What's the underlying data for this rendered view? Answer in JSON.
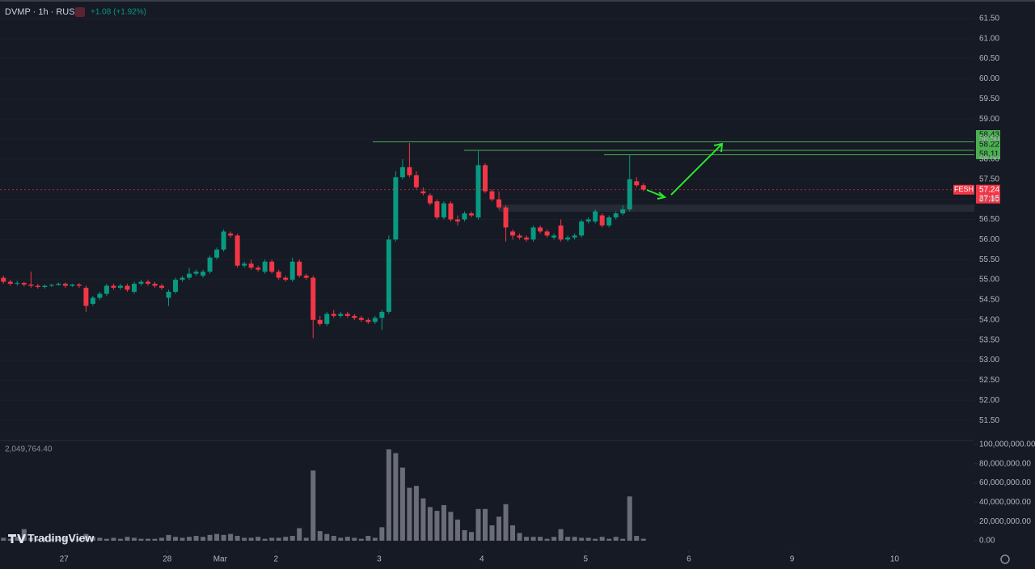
{
  "header": {
    "symbol": "DVMP · 1h · RUS",
    "change": "+1.08 (+1.92%)",
    "volume_readout": "2,049,764.40",
    "brand": "TradingView"
  },
  "chart_data": {
    "type": "candlestick",
    "up_color": "#089981",
    "down_color": "#f23645",
    "volume_color": "#6a6d78",
    "level_color": "#4caf50",
    "xlim": [
      -0.5,
      140.5
    ],
    "xticks": [
      {
        "value": 8.8,
        "label": "27"
      },
      {
        "value": 23.8,
        "label": "28"
      },
      {
        "value": 31.5,
        "label": "Mar"
      },
      {
        "value": 39.6,
        "label": "2"
      },
      {
        "value": 54.6,
        "label": "3"
      },
      {
        "value": 69.5,
        "label": "4"
      },
      {
        "value": 84.6,
        "label": "5"
      },
      {
        "value": 99.6,
        "label": "6"
      },
      {
        "value": 114.6,
        "label": "9"
      },
      {
        "value": 129.5,
        "label": "10"
      }
    ],
    "ylim": [
      51.0,
      62.0
    ],
    "yticks": [
      {
        "value": 51.5,
        "label": "51.50"
      },
      {
        "value": 52,
        "label": "52.00"
      },
      {
        "value": 52.5,
        "label": "52.50"
      },
      {
        "value": 53,
        "label": "53.00"
      },
      {
        "value": 53.5,
        "label": "53.50"
      },
      {
        "value": 54,
        "label": "54.00"
      },
      {
        "value": 54.5,
        "label": "54.50"
      },
      {
        "value": 55,
        "label": "55.00"
      },
      {
        "value": 55.5,
        "label": "55.50"
      },
      {
        "value": 56,
        "label": "56.00"
      },
      {
        "value": 56.5,
        "label": "56.50"
      },
      {
        "value": 57,
        "label": "57.00"
      },
      {
        "value": 57.5,
        "label": "57.50"
      },
      {
        "value": 58,
        "label": "58.00"
      },
      {
        "value": 58.5,
        "label": "58.50"
      },
      {
        "value": 59,
        "label": "59.00"
      },
      {
        "value": 59.5,
        "label": "59.50"
      },
      {
        "value": 60,
        "label": "60.00"
      },
      {
        "value": 60.5,
        "label": "60.50"
      },
      {
        "value": 61,
        "label": "61.00"
      },
      {
        "value": 61.5,
        "label": "61.50"
      }
    ],
    "volume_lim": [
      0,
      100000000
    ],
    "volume_ticks": [
      {
        "value": 0,
        "label": "0.00"
      },
      {
        "value": 20000000,
        "label": "20,000,000.00"
      },
      {
        "value": 40000000,
        "label": "40,000,000.00"
      },
      {
        "value": 60000000,
        "label": "60,000,000.00"
      },
      {
        "value": 80000000,
        "label": "80,000,000.00"
      },
      {
        "value": 100000000,
        "label": "100,000,000.00"
      }
    ],
    "open": [
      55.05,
      54.95,
      54.9,
      54.92,
      54.88,
      54.85,
      54.82,
      54.85,
      54.87,
      54.9,
      54.85,
      54.88,
      54.8,
      54.4,
      54.55,
      54.65,
      54.85,
      54.8,
      54.85,
      54.7,
      54.9,
      54.95,
      54.9,
      54.85,
      54.55,
      54.7,
      55.0,
      55.05,
      55.15,
      55.1,
      55.2,
      55.55,
      55.75,
      56.15,
      56.1,
      55.35,
      55.4,
      55.3,
      55.2,
      55.45,
      55.2,
      55.05,
      55.0,
      55.45,
      55.1,
      55.05,
      54.0,
      53.9,
      54.15,
      54.1,
      54.15,
      54.1,
      54.05,
      54.0,
      53.95,
      54.05,
      54.2,
      56.0,
      57.55,
      57.8,
      57.6,
      57.2,
      57.1,
      56.95,
      56.55,
      56.9,
      56.5,
      56.5,
      56.65,
      56.55,
      57.85,
      57.2,
      57.0,
      56.8,
      56.2,
      56.1,
      56.05,
      56.0,
      56.3,
      56.2,
      56.05,
      56.35,
      56.0,
      56.05,
      56.1,
      56.45,
      56.45,
      56.6,
      56.35,
      56.55,
      56.65,
      56.75,
      57.45,
      57.35
    ],
    "high": [
      55.1,
      55.0,
      54.97,
      54.95,
      55.2,
      54.9,
      54.88,
      54.9,
      54.93,
      54.93,
      54.9,
      54.92,
      54.85,
      54.6,
      54.7,
      54.9,
      54.9,
      54.9,
      54.9,
      54.95,
      55.0,
      55.0,
      54.95,
      54.9,
      54.75,
      55.05,
      55.1,
      55.3,
      55.25,
      55.25,
      55.6,
      55.8,
      56.25,
      56.2,
      56.15,
      55.45,
      55.5,
      55.35,
      55.5,
      55.5,
      55.25,
      55.1,
      55.55,
      55.5,
      55.15,
      55.1,
      54.1,
      54.2,
      54.25,
      54.2,
      54.2,
      54.15,
      54.1,
      54.05,
      54.1,
      54.25,
      56.1,
      57.7,
      58.0,
      58.4,
      57.7,
      57.3,
      57.15,
      57.0,
      56.95,
      56.95,
      56.6,
      56.7,
      56.7,
      58.2,
      57.9,
      57.25,
      57.2,
      56.85,
      56.25,
      56.15,
      56.1,
      56.35,
      56.35,
      56.25,
      56.15,
      56.5,
      56.1,
      56.15,
      56.5,
      56.55,
      56.75,
      56.65,
      56.6,
      56.7,
      56.85,
      58.1,
      57.55,
      57.4
    ],
    "low": [
      54.9,
      54.85,
      54.85,
      54.83,
      54.8,
      54.78,
      54.78,
      54.82,
      54.85,
      54.8,
      54.82,
      54.8,
      54.2,
      54.35,
      54.5,
      54.6,
      54.75,
      54.75,
      54.7,
      54.65,
      54.85,
      54.85,
      54.8,
      54.75,
      54.35,
      54.65,
      54.95,
      55.0,
      55.1,
      55.05,
      55.15,
      55.5,
      55.7,
      56.05,
      55.3,
      55.3,
      55.25,
      55.2,
      55.15,
      55.15,
      55.0,
      54.95,
      54.95,
      55.05,
      55.0,
      53.55,
      53.85,
      53.85,
      54.05,
      54.05,
      54.05,
      54.0,
      53.95,
      53.9,
      53.9,
      53.75,
      54.15,
      55.95,
      57.5,
      57.55,
      57.25,
      57.1,
      56.85,
      56.5,
      56.5,
      56.45,
      56.35,
      56.45,
      56.55,
      56.5,
      57.15,
      56.95,
      56.75,
      55.95,
      56.0,
      56.0,
      55.95,
      55.95,
      56.15,
      56.05,
      56.0,
      55.95,
      55.95,
      56.0,
      56.05,
      56.4,
      56.4,
      56.3,
      56.3,
      56.5,
      56.6,
      56.7,
      57.3,
      57.2
    ],
    "close": [
      54.95,
      54.9,
      54.92,
      54.88,
      54.85,
      54.82,
      54.85,
      54.87,
      54.9,
      54.85,
      54.88,
      54.85,
      54.35,
      54.55,
      54.65,
      54.85,
      54.8,
      54.85,
      54.75,
      54.9,
      54.95,
      54.9,
      54.85,
      54.8,
      54.7,
      55.0,
      55.05,
      55.15,
      55.2,
      55.2,
      55.55,
      55.75,
      56.2,
      56.1,
      55.35,
      55.4,
      55.3,
      55.25,
      55.45,
      55.2,
      55.05,
      55.0,
      55.45,
      55.1,
      55.05,
      54.0,
      53.9,
      54.15,
      54.1,
      54.15,
      54.1,
      54.05,
      54.0,
      53.95,
      54.05,
      54.2,
      56.0,
      57.55,
      57.8,
      57.6,
      57.3,
      57.15,
      56.9,
      56.55,
      56.9,
      56.5,
      56.45,
      56.65,
      56.6,
      57.85,
      57.2,
      57.0,
      56.8,
      56.3,
      56.1,
      56.05,
      56.0,
      56.3,
      56.2,
      56.1,
      56.1,
      56.0,
      56.05,
      56.1,
      56.45,
      56.5,
      56.7,
      56.35,
      56.55,
      56.65,
      56.75,
      57.5,
      57.35,
      57.24
    ],
    "volume": [
      3000000,
      2000000,
      4000000,
      12000000,
      3000000,
      2000000,
      3000000,
      2000000,
      2000000,
      3000000,
      2000000,
      2000000,
      7000000,
      4000000,
      3000000,
      2000000,
      3000000,
      2000000,
      4000000,
      3000000,
      2000000,
      2000000,
      2000000,
      3000000,
      6000000,
      4000000,
      3000000,
      4000000,
      5000000,
      4000000,
      6000000,
      7000000,
      6000000,
      7000000,
      5000000,
      3000000,
      3000000,
      4000000,
      2000000,
      3000000,
      3000000,
      4000000,
      5000000,
      13000000,
      3000000,
      73000000,
      10000000,
      7000000,
      5000000,
      3000000,
      4000000,
      3000000,
      2000000,
      5000000,
      3000000,
      14000000,
      95000000,
      91000000,
      76000000,
      55000000,
      57000000,
      44000000,
      35000000,
      31000000,
      37000000,
      30000000,
      22000000,
      11000000,
      9000000,
      33000000,
      33000000,
      16000000,
      25000000,
      38000000,
      16000000,
      8000000,
      4000000,
      4000000,
      4000000,
      2000000,
      4000000,
      12000000,
      4000000,
      4000000,
      3000000,
      3000000,
      2000000,
      4000000,
      2000000,
      4000000,
      2000000,
      46000000,
      5000000,
      2049764.4
    ],
    "levels": [
      58.43,
      58.22,
      58.11
    ],
    "price_tag": {
      "name": "FESH",
      "countdown": "37:15"
    }
  }
}
